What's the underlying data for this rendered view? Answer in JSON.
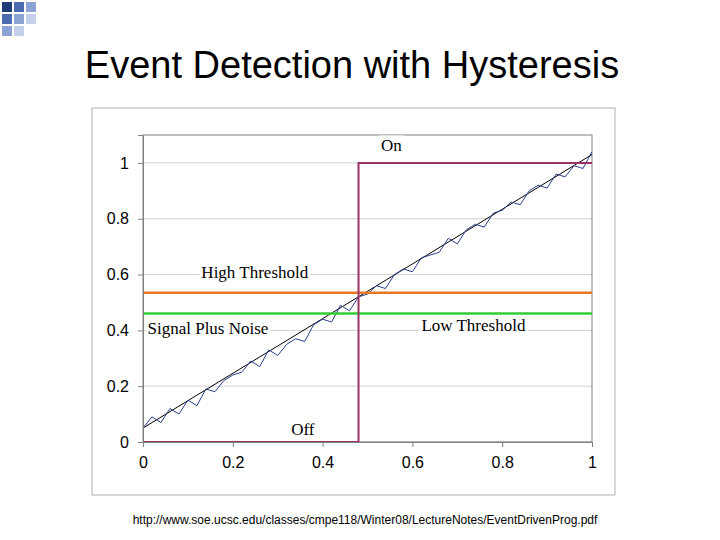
{
  "chart_data": {
    "type": "line",
    "title": "Event Detection with Hysteresis",
    "source": "http://www.soe.ucsc.edu/classes/cmpe118/Winter08/LectureNotes/EventDrivenProg.pdf",
    "xlim": [
      0,
      1.0
    ],
    "ylim": [
      0,
      1.1
    ],
    "xticks": [
      0,
      0.2,
      0.4,
      0.6,
      0.8,
      1
    ],
    "yticks": [
      0,
      0.2,
      0.4,
      0.6,
      0.8,
      1
    ],
    "grid": true,
    "series": [
      {
        "color": "#000000",
        "line_style": "solid",
        "x": [
          0,
          1
        ],
        "values": [
          0.05,
          1.03
        ]
      },
      {
        "color": "#2a3f8f",
        "line_style": "solid",
        "x": [
          0,
          0.02,
          0.04,
          0.06,
          0.08,
          0.1,
          0.12,
          0.14,
          0.16,
          0.18,
          0.2,
          0.22,
          0.24,
          0.26,
          0.28,
          0.3,
          0.32,
          0.34,
          0.36,
          0.38,
          0.4,
          0.42,
          0.44,
          0.46,
          0.48,
          0.5,
          0.52,
          0.54,
          0.56,
          0.58,
          0.6,
          0.62,
          0.64,
          0.66,
          0.68,
          0.7,
          0.72,
          0.74,
          0.76,
          0.78,
          0.8,
          0.82,
          0.84,
          0.86,
          0.88,
          0.9,
          0.92,
          0.94,
          0.96,
          0.98,
          1
        ],
        "values": [
          0.05,
          0.09,
          0.07,
          0.12,
          0.1,
          0.15,
          0.13,
          0.19,
          0.18,
          0.22,
          0.24,
          0.25,
          0.29,
          0.27,
          0.33,
          0.31,
          0.35,
          0.37,
          0.36,
          0.42,
          0.44,
          0.43,
          0.49,
          0.47,
          0.52,
          0.53,
          0.56,
          0.55,
          0.6,
          0.62,
          0.61,
          0.66,
          0.67,
          0.68,
          0.73,
          0.71,
          0.76,
          0.78,
          0.77,
          0.82,
          0.83,
          0.86,
          0.85,
          0.9,
          0.92,
          0.91,
          0.96,
          0.95,
          0.99,
          0.98,
          1.04
        ]
      },
      {
        "color": "#e87722",
        "line_style": "solid",
        "x": [
          0,
          1
        ],
        "values": [
          0.535,
          0.535
        ]
      },
      {
        "color": "#33cc33",
        "line_style": "solid",
        "x": [
          0,
          1
        ],
        "values": [
          0.46,
          0.46
        ]
      },
      {
        "color": "#993366",
        "line_style": "solid",
        "x": [
          0,
          0.48,
          0.48,
          1
        ],
        "values": [
          0,
          0,
          1,
          1
        ]
      }
    ],
    "annotations": [
      {
        "text": "On",
        "x": 0.53,
        "y": 1.055
      },
      {
        "text": "High Threshold",
        "x": 0.13,
        "y": 0.6
      },
      {
        "text": "Signal Plus Noise",
        "x": 0.01,
        "y": 0.4
      },
      {
        "text": "Low Threshold",
        "x": 0.62,
        "y": 0.41
      },
      {
        "text": "Off",
        "x": 0.33,
        "y": 0.04
      }
    ]
  }
}
